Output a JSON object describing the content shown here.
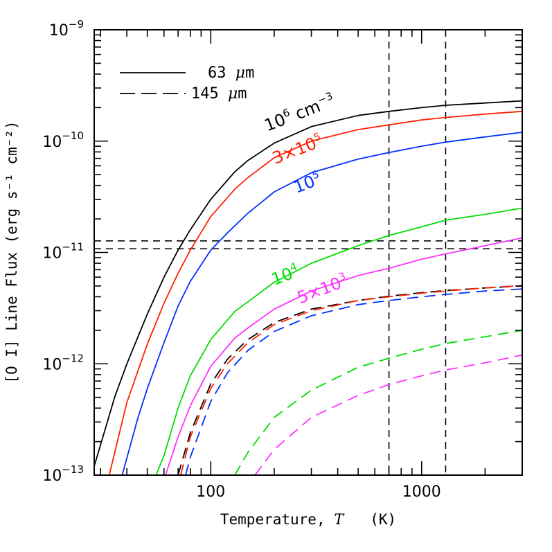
{
  "chart_data": {
    "type": "line",
    "xlabel": {
      "main": "Temperature, ",
      "var": "T",
      "unit": "   (K)"
    },
    "ylabel": "[O I] Line Flux (erg s⁻¹ cm⁻²)",
    "x_scale": "log",
    "y_scale": "log",
    "xlim": [
      28,
      3000
    ],
    "ylim": [
      1e-13,
      1e-09
    ],
    "x_ticks": [
      {
        "value": 100,
        "label": "100"
      },
      {
        "value": 1000,
        "label": "1000"
      }
    ],
    "y_ticks": [
      {
        "value": 1e-13,
        "base": "10",
        "exp": "−13"
      },
      {
        "value": 1e-12,
        "base": "10",
        "exp": "−12"
      },
      {
        "value": 1e-11,
        "base": "10",
        "exp": "−11"
      },
      {
        "value": 1e-10,
        "base": "10",
        "exp": "−10"
      },
      {
        "value": 1e-09,
        "base": "10",
        "exp": "−9"
      }
    ],
    "legend": {
      "placement": "top-left",
      "entries": [
        {
          "style": "solid",
          "label_pre": "63 ",
          "label_mu": "μ",
          "label_post": "m"
        },
        {
          "style": "dashed",
          "label_pre": "145 ",
          "label_mu": "μ",
          "label_post": "m"
        }
      ]
    },
    "reference_lines": {
      "vertical_x": [
        700,
        1300
      ],
      "horizontal_y": [
        1.27e-11,
        1.08e-11
      ]
    },
    "series": [
      {
        "line": "63",
        "density": "1e6",
        "color": "#000000",
        "style": "solid",
        "x": [
          28,
          35,
          40,
          50,
          60,
          70,
          80,
          100,
          130,
          150,
          200,
          300,
          500,
          700,
          1000,
          1300,
          2000,
          3000
        ],
        "y": [
          1.2e-13,
          5e-13,
          1e-12,
          2.8e-12,
          6e-12,
          1.05e-11,
          1.6e-11,
          3e-11,
          5.3e-11,
          6.7e-11,
          9.6e-11,
          1.35e-10,
          1.7e-10,
          1.85e-10,
          2e-10,
          2.1e-10,
          2.2e-10,
          2.3e-10
        ]
      },
      {
        "line": "63",
        "density": "3e5",
        "color": "#ff2000",
        "style": "solid",
        "x": [
          33,
          40,
          50,
          60,
          70,
          80,
          100,
          130,
          150,
          200,
          300,
          500,
          700,
          1000,
          1300,
          2000,
          3000
        ],
        "y": [
          1e-13,
          4.5e-13,
          1.5e-12,
          3.5e-12,
          6.5e-12,
          1.05e-11,
          2.1e-11,
          3.7e-11,
          4.7e-11,
          7.1e-11,
          1e-10,
          1.27e-10,
          1.4e-10,
          1.55e-10,
          1.63e-10,
          1.75e-10,
          1.85e-10
        ]
      },
      {
        "line": "63",
        "density": "1e5",
        "color": "#0030ff",
        "style": "solid",
        "x": [
          38,
          45,
          50,
          60,
          70,
          80,
          100,
          120,
          150,
          200,
          300,
          500,
          700,
          1000,
          1300,
          2000,
          3000
        ],
        "y": [
          1e-13,
          3.2e-13,
          6e-13,
          1.55e-12,
          3.3e-12,
          5.5e-12,
          1.05e-11,
          1.5e-11,
          2.25e-11,
          3.5e-11,
          5.2e-11,
          6.9e-11,
          7.9e-11,
          9e-11,
          9.8e-11,
          1.09e-10,
          1.2e-10
        ]
      },
      {
        "line": "63",
        "density": "1e4",
        "color": "#00dd00",
        "style": "solid",
        "x": [
          55,
          60,
          70,
          80,
          100,
          130,
          150,
          200,
          300,
          500,
          700,
          1000,
          1300,
          2000,
          3000
        ],
        "y": [
          1e-13,
          1.5e-13,
          4e-13,
          7.8e-13,
          1.65e-12,
          2.95e-12,
          3.6e-12,
          5.4e-12,
          8e-12,
          1.15e-11,
          1.42e-11,
          1.7e-11,
          1.95e-11,
          2.2e-11,
          2.5e-11
        ]
      },
      {
        "line": "63",
        "density": "5e3",
        "color": "#ff30ff",
        "style": "solid",
        "x": [
          61,
          70,
          80,
          100,
          130,
          150,
          200,
          300,
          500,
          700,
          1000,
          1300,
          2000,
          3000
        ],
        "y": [
          1e-13,
          2.2e-13,
          4.2e-13,
          9.5e-13,
          1.7e-12,
          2.1e-12,
          3.1e-12,
          4.5e-12,
          6.2e-12,
          7.2e-12,
          8.7e-12,
          9.7e-12,
          1.15e-11,
          1.35e-11
        ]
      },
      {
        "line": "145",
        "density": "1e6",
        "color": "#000000",
        "style": "dashed",
        "x": [
          70,
          80,
          100,
          120,
          150,
          200,
          300,
          500,
          700,
          1000,
          1300,
          2000,
          3000
        ],
        "y": [
          1e-13,
          2.4e-13,
          6.6e-13,
          1.1e-12,
          1.65e-12,
          2.35e-12,
          3.1e-12,
          3.7e-12,
          4.05e-12,
          4.35e-12,
          4.55e-12,
          4.8e-12,
          5e-12
        ]
      },
      {
        "line": "145",
        "density": "3e5",
        "color": "#ff2000",
        "style": "dashed",
        "x": [
          72,
          80,
          100,
          120,
          150,
          200,
          300,
          500,
          700,
          1000,
          1300,
          2000,
          3000
        ],
        "y": [
          1e-13,
          2.2e-13,
          6e-13,
          1e-12,
          1.55e-12,
          2.25e-12,
          3e-12,
          3.7e-12,
          4e-12,
          4.3e-12,
          4.5e-12,
          4.8e-12,
          5.05e-12
        ]
      },
      {
        "line": "145",
        "density": "1e5",
        "color": "#0030ff",
        "style": "dashed",
        "x": [
          76,
          80,
          100,
          120,
          150,
          200,
          300,
          500,
          700,
          1000,
          1300,
          2000,
          3000
        ],
        "y": [
          1e-13,
          1.45e-13,
          4.6e-13,
          8.3e-13,
          1.32e-12,
          1.95e-12,
          2.7e-12,
          3.4e-12,
          3.7e-12,
          4e-12,
          4.2e-12,
          4.5e-12,
          4.7e-12
        ]
      },
      {
        "line": "145",
        "density": "1e4",
        "color": "#00dd00",
        "style": "dashed",
        "x": [
          130,
          150,
          200,
          300,
          500,
          700,
          1000,
          1300,
          2000,
          3000
        ],
        "y": [
          1e-13,
          1.6e-13,
          3.3e-13,
          5.8e-13,
          9.3e-13,
          1.12e-12,
          1.35e-12,
          1.52e-12,
          1.75e-12,
          2e-12
        ]
      },
      {
        "line": "145",
        "density": "5e3",
        "color": "#ff30ff",
        "style": "dashed",
        "x": [
          162,
          200,
          300,
          500,
          700,
          1000,
          1300,
          2000,
          3000
        ],
        "y": [
          1e-13,
          1.7e-13,
          3.3e-13,
          5.2e-13,
          6.5e-13,
          7.8e-13,
          8.8e-13,
          1.02e-12,
          1.2e-12
        ]
      }
    ],
    "series_labels": [
      {
        "x": 185,
        "y": 1.22e-10,
        "rotate": -21,
        "color": "#000000",
        "parts": [
          {
            "t": "10"
          },
          {
            "t": "6",
            "sup": true
          },
          {
            "t": " cm"
          },
          {
            "t": "−3",
            "sup": true
          }
        ]
      },
      {
        "x": 202,
        "y": 6.2e-11,
        "rotate": -21,
        "color": "#ff2000",
        "parts": [
          {
            "t": "3×10"
          },
          {
            "t": "5",
            "sup": true
          }
        ]
      },
      {
        "x": 255,
        "y": 3.4e-11,
        "rotate": -21,
        "color": "#0030ff",
        "parts": [
          {
            "t": "10"
          },
          {
            "t": "5",
            "sup": true
          }
        ]
      },
      {
        "x": 200,
        "y": 5.05e-12,
        "rotate": -21,
        "color": "#00dd00",
        "parts": [
          {
            "t": "10"
          },
          {
            "t": "4",
            "sup": true
          }
        ]
      },
      {
        "x": 265,
        "y": 3.45e-12,
        "rotate": -21,
        "color": "#ff30ff",
        "parts": [
          {
            "t": "5×10"
          },
          {
            "t": "3",
            "sup": true
          }
        ]
      }
    ]
  }
}
